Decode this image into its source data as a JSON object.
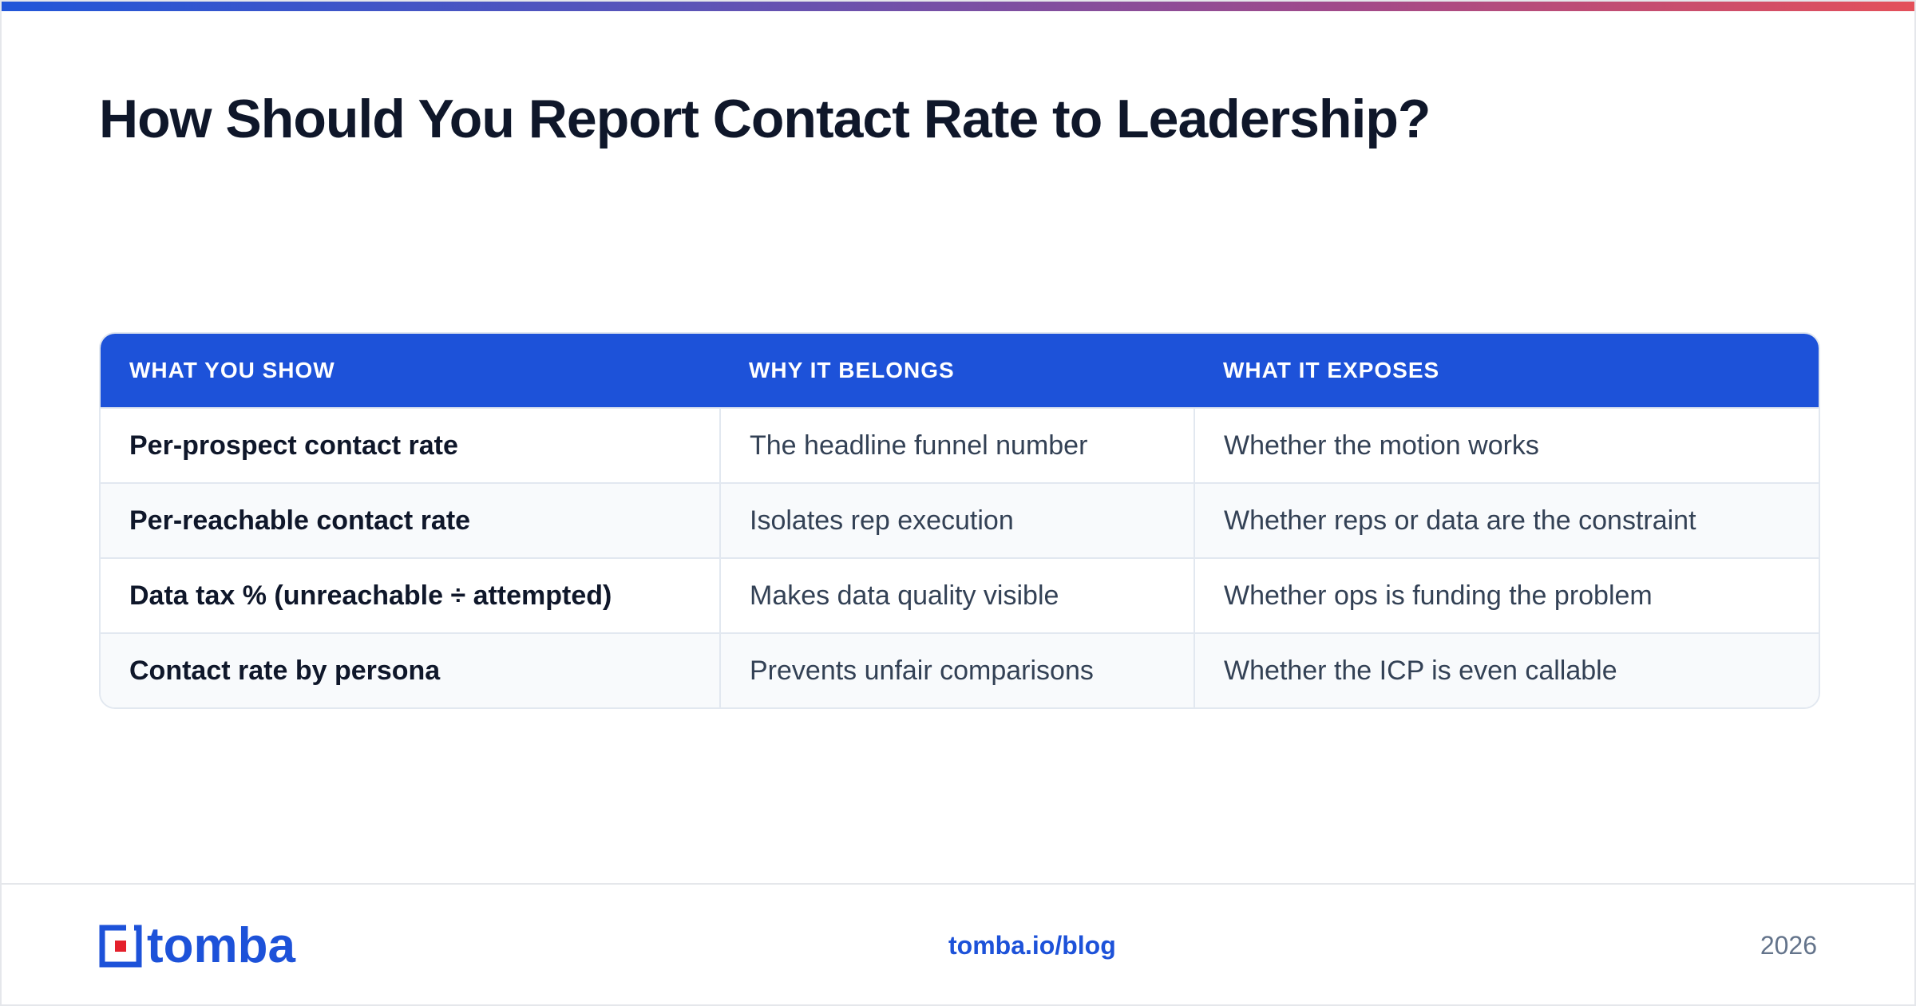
{
  "title": "How Should You Report Contact Rate to Leadership?",
  "table": {
    "headers": [
      "WHAT YOU SHOW",
      "WHY IT BELONGS",
      "WHAT IT EXPOSES"
    ],
    "rows": [
      [
        "Per-prospect contact rate",
        "The headline funnel number",
        "Whether the motion works"
      ],
      [
        "Per-reachable contact rate",
        "Isolates rep execution",
        "Whether reps or data are the constraint"
      ],
      [
        "Data tax % (unreachable ÷ attempted)",
        "Makes data quality visible",
        "Whether ops is funding the problem"
      ],
      [
        "Contact rate by persona",
        "Prevents unfair comparisons",
        "Whether the ICP is even callable"
      ]
    ]
  },
  "footer": {
    "logo_text": "tomba",
    "link": "tomba.io/blog",
    "year": "2026"
  },
  "colors": {
    "accent": "#1d52d9",
    "logo_red": "#e4202b",
    "title": "#0f172a"
  }
}
